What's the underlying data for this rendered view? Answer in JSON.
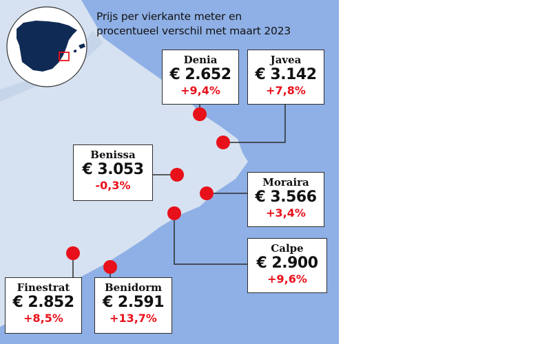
{
  "title": {
    "line1": "Prijs per vierkante meter en",
    "line2": "procentueel verschil met maart 2023"
  },
  "colors": {
    "sea": "#8fb0e6",
    "land": "#d6e2f1",
    "inset_country": "#0f2a55",
    "dot": "#e8101a",
    "positive_change": "#e8101a",
    "negative_change": "#e8101a"
  },
  "inset": {
    "highlight": "red-rectangle"
  },
  "towns": [
    {
      "name": "Denia",
      "price": "€ 2.652",
      "change": "+9,4%"
    },
    {
      "name": "Javea",
      "price": "€ 3.142",
      "change": "+7,8%"
    },
    {
      "name": "Benissa",
      "price": "€ 3.053",
      "change": "-0,3%"
    },
    {
      "name": "Moraira",
      "price": "€ 3.566",
      "change": "+3,4%"
    },
    {
      "name": "Calpe",
      "price": "€ 2.900",
      "change": "+9,6%"
    },
    {
      "name": "Finestrat",
      "price": "€ 2.852",
      "change": "+8,5%"
    },
    {
      "name": "Benidorm",
      "price": "€ 2.591",
      "change": "+13,7%"
    }
  ]
}
